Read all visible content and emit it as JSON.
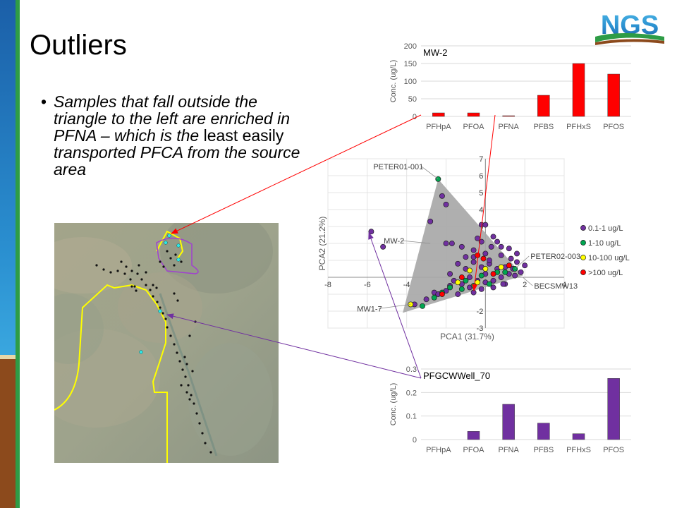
{
  "slide": {
    "title": "Outliers",
    "bullet": {
      "italic_part1": "Samples that fall outside the triangle to the left are enriched in PFNA – which is the",
      "plain_part": " least easily ",
      "italic_part2": "transported PFCA from the source area"
    },
    "logo_text": "NGS"
  },
  "colors": {
    "sidebar_blue": "#2a8fd0",
    "sidebar_green": "#2e9c46",
    "sidebar_brown": "#8c4a1c",
    "bar_red": "#ff0000",
    "bar_purple": "#7030a0",
    "legend_purple": "#7030a0",
    "legend_green": "#00a550",
    "legend_yellow": "#ffff00",
    "legend_red": "#ff0000",
    "map_boundary": "#ffff00",
    "map_boundary2": "#a040d0"
  },
  "chart_data": [
    {
      "type": "bar",
      "title": "MW-2",
      "categories": [
        "PFHpA",
        "PFOA",
        "PFNA",
        "PFBS",
        "PFHxS",
        "PFOS"
      ],
      "values": [
        10,
        10,
        2,
        60,
        150,
        120
      ],
      "ylabel": "Conc. (ug/L)",
      "ylim": [
        0,
        200
      ],
      "yticks": [
        0,
        50,
        100,
        150,
        200
      ],
      "color": "#ff0000",
      "grid": true
    },
    {
      "type": "scatter",
      "xlabel": "PCA1 (31.7%)",
      "ylabel": "PCA2 (21.2%)",
      "xlim": [
        -8,
        4
      ],
      "ylim": [
        -3,
        7
      ],
      "xticks": [
        -8,
        -6,
        -4,
        -2,
        0,
        2,
        4
      ],
      "xtick_labels": [
        "-8",
        "-6",
        "-4",
        "",
        "",
        "2",
        "4"
      ],
      "yticks": [
        -3,
        -2,
        -1,
        0,
        1,
        2,
        3,
        4,
        5,
        6,
        7
      ],
      "ytick_labels": [
        "-3",
        "-2",
        "",
        "",
        "",
        "",
        "3",
        "4",
        "5",
        "6",
        "7"
      ],
      "grid": true,
      "legend_position": "right",
      "triangle": [
        [
          -2.4,
          5.8
        ],
        [
          -4.2,
          -2.1
        ],
        [
          1.9,
          0.1
        ]
      ],
      "series": [
        {
          "name": "0.1-1 ug/L",
          "color": "#7030a0",
          "points": [
            [
              -5.8,
              2.7
            ],
            [
              -5.2,
              1.8
            ],
            [
              -2.2,
              4.8
            ],
            [
              -2.0,
              4.3
            ],
            [
              -2.8,
              3.3
            ],
            [
              -2.0,
              2.0
            ],
            [
              -1.7,
              2.0
            ],
            [
              -1.2,
              1.8
            ],
            [
              -0.2,
              3.1
            ],
            [
              0.0,
              3.1
            ],
            [
              -0.4,
              2.3
            ],
            [
              0.4,
              2.4
            ],
            [
              0.6,
              2.1
            ],
            [
              0.3,
              1.8
            ],
            [
              1.2,
              1.7
            ],
            [
              1.6,
              1.4
            ],
            [
              2.0,
              0.7
            ],
            [
              1.8,
              0.3
            ],
            [
              -0.6,
              1.6
            ],
            [
              -1.4,
              0.8
            ],
            [
              -1.0,
              0.5
            ],
            [
              -0.6,
              0.9
            ],
            [
              -0.2,
              0.6
            ],
            [
              0.2,
              0.8
            ],
            [
              0.6,
              0.5
            ],
            [
              1.0,
              0.6
            ],
            [
              1.4,
              0.5
            ],
            [
              -1.6,
              -0.2
            ],
            [
              -1.2,
              -0.4
            ],
            [
              -0.8,
              0.0
            ],
            [
              -0.4,
              -0.2
            ],
            [
              0.0,
              -0.3
            ],
            [
              0.4,
              -0.2
            ],
            [
              0.8,
              0.0
            ],
            [
              1.2,
              0.2
            ],
            [
              -2.6,
              -0.9
            ],
            [
              -2.0,
              -0.8
            ],
            [
              -1.4,
              -1.0
            ],
            [
              -0.8,
              -0.6
            ],
            [
              -0.2,
              -0.7
            ],
            [
              0.4,
              -0.6
            ],
            [
              1.0,
              -0.4
            ],
            [
              -3.6,
              -1.6
            ],
            [
              -3.0,
              -1.3
            ],
            [
              -2.4,
              -1.0
            ],
            [
              -0.6,
              1.2
            ],
            [
              0.0,
              1.4
            ],
            [
              0.8,
              1.3
            ],
            [
              -1.0,
              1.2
            ],
            [
              0.2,
              1.0
            ],
            [
              1.6,
              0.9
            ],
            [
              -0.6,
              -0.9
            ],
            [
              -1.8,
              -0.5
            ],
            [
              1.5,
              0.1
            ],
            [
              -0.2,
              2.1
            ],
            [
              0.8,
              1.8
            ],
            [
              1.3,
              1.1
            ],
            [
              -1.8,
              0.2
            ],
            [
              0.0,
              0.2
            ],
            [
              0.9,
              -0.4
            ]
          ]
        },
        {
          "name": "1-10 ug/L",
          "color": "#00a550",
          "points": [
            [
              -2.4,
              5.8
            ],
            [
              -3.2,
              -1.7
            ],
            [
              -2.6,
              -1.2
            ],
            [
              -2.2,
              -0.9
            ],
            [
              -1.8,
              -0.6
            ],
            [
              -1.2,
              -0.7
            ],
            [
              -0.6,
              -0.5
            ],
            [
              -0.2,
              0.1
            ],
            [
              0.6,
              0.3
            ],
            [
              1.0,
              0.3
            ],
            [
              1.5,
              0.5
            ],
            [
              0.2,
              -0.4
            ],
            [
              -1.0,
              -0.2
            ]
          ]
        },
        {
          "name": "10-100 ug/L",
          "color": "#ffff00",
          "points": [
            [
              -3.8,
              -1.6
            ],
            [
              -0.8,
              0.4
            ],
            [
              0.0,
              0.5
            ],
            [
              0.8,
              0.6
            ],
            [
              -0.4,
              -0.3
            ],
            [
              -1.4,
              -0.3
            ]
          ]
        },
        {
          "name": ">100 ug/L",
          "color": "#ff0000",
          "points": [
            [
              -2.2,
              -1.0
            ],
            [
              -0.4,
              1.3
            ],
            [
              -0.1,
              1.1
            ],
            [
              0.4,
              0.2
            ],
            [
              1.2,
              0.7
            ],
            [
              -1.2,
              0.0
            ]
          ]
        }
      ],
      "annotations": [
        {
          "text": "PETER01-001",
          "x": -2.4,
          "y": 5.8
        },
        {
          "text": "MW-2",
          "x": -2.8,
          "y": 2.0
        },
        {
          "text": "PETER02-003",
          "x": 1.5,
          "y": 0.5
        },
        {
          "text": "MW1-7",
          "x": -3.8,
          "y": -1.6
        },
        {
          "text": "BECSMW13",
          "x": 1.9,
          "y": 0.0
        }
      ]
    },
    {
      "type": "bar",
      "title": "PFGCWWell_70",
      "categories": [
        "PFHpA",
        "PFOA",
        "PFNA",
        "PFBS",
        "PFHxS",
        "PFOS"
      ],
      "values": [
        0,
        0.035,
        0.15,
        0.07,
        0.025,
        0.26
      ],
      "ylabel": "Conc. (ug/L)",
      "ylim": [
        0,
        0.3
      ],
      "yticks": [
        0,
        0.1,
        0.2,
        0.3
      ],
      "ytick_labels": [
        "0",
        "0.1",
        "0.2",
        "0.3"
      ],
      "color": "#7030a0",
      "grid": true
    }
  ]
}
